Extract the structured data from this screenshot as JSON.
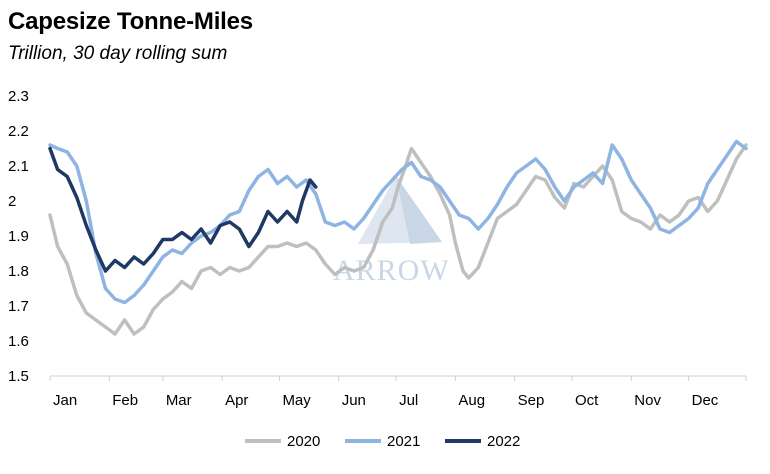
{
  "chart_data": {
    "type": "line",
    "title": "Capesize Tonne-Miles",
    "subtitle": "Trillion, 30 day rolling sum",
    "xlabel": "",
    "ylabel": "",
    "ylim": [
      1.5,
      2.3
    ],
    "y_ticks": [
      "1.5",
      "1.6",
      "1.7",
      "1.8",
      "1.9",
      "2",
      "2.1",
      "2.2",
      "2.3"
    ],
    "x_ticks": [
      "Jan",
      "Feb",
      "Mar",
      "Apr",
      "May",
      "Jun",
      "Jul",
      "Aug",
      "Sep",
      "Oct",
      "Nov",
      "Dec"
    ],
    "x_unit": "day of year",
    "xlim": [
      1,
      365
    ],
    "grid": false,
    "legend_position": "bottom-center",
    "series": [
      {
        "name": "2020",
        "color": "#bfbfbf",
        "x": [
          1,
          5,
          10,
          15,
          20,
          25,
          30,
          35,
          40,
          45,
          50,
          55,
          60,
          65,
          70,
          75,
          80,
          85,
          90,
          95,
          100,
          105,
          110,
          115,
          120,
          125,
          130,
          135,
          140,
          145,
          150,
          155,
          160,
          165,
          170,
          175,
          180,
          183,
          187,
          190,
          195,
          200,
          205,
          210,
          213,
          217,
          220,
          225,
          230,
          235,
          240,
          245,
          250,
          255,
          260,
          265,
          270,
          275,
          280,
          285,
          290,
          295,
          300,
          305,
          310,
          315,
          320,
          325,
          330,
          335,
          340,
          345,
          350,
          355,
          360,
          365
        ],
        "y": [
          1.96,
          1.87,
          1.82,
          1.73,
          1.68,
          1.66,
          1.64,
          1.62,
          1.66,
          1.62,
          1.64,
          1.69,
          1.72,
          1.74,
          1.77,
          1.75,
          1.8,
          1.81,
          1.79,
          1.81,
          1.8,
          1.81,
          1.84,
          1.87,
          1.87,
          1.88,
          1.87,
          1.88,
          1.86,
          1.82,
          1.79,
          1.81,
          1.8,
          1.81,
          1.86,
          1.94,
          1.98,
          2.04,
          2.1,
          2.15,
          2.11,
          2.07,
          2.02,
          1.96,
          1.88,
          1.8,
          1.78,
          1.81,
          1.88,
          1.95,
          1.97,
          1.99,
          2.03,
          2.07,
          2.06,
          2.01,
          1.98,
          2.05,
          2.04,
          2.07,
          2.1,
          2.06,
          1.97,
          1.95,
          1.94,
          1.92,
          1.96,
          1.94,
          1.96,
          2.0,
          2.01,
          1.97,
          2.0,
          2.06,
          2.12,
          2.16
        ]
      },
      {
        "name": "2021",
        "color": "#8db4e2",
        "x": [
          1,
          5,
          10,
          15,
          20,
          25,
          30,
          35,
          40,
          45,
          50,
          55,
          60,
          65,
          70,
          75,
          80,
          85,
          90,
          95,
          100,
          105,
          110,
          115,
          120,
          125,
          130,
          135,
          140,
          145,
          150,
          155,
          160,
          165,
          170,
          175,
          180,
          185,
          190,
          195,
          200,
          205,
          210,
          215,
          220,
          225,
          230,
          235,
          240,
          245,
          250,
          255,
          260,
          265,
          270,
          275,
          280,
          285,
          290,
          295,
          300,
          305,
          310,
          315,
          320,
          325,
          330,
          335,
          340,
          345,
          350,
          355,
          360,
          365
        ],
        "y": [
          2.16,
          2.15,
          2.14,
          2.1,
          2.0,
          1.85,
          1.75,
          1.72,
          1.71,
          1.73,
          1.76,
          1.8,
          1.84,
          1.86,
          1.85,
          1.88,
          1.9,
          1.91,
          1.93,
          1.96,
          1.97,
          2.03,
          2.07,
          2.09,
          2.05,
          2.07,
          2.04,
          2.06,
          2.02,
          1.94,
          1.93,
          1.94,
          1.92,
          1.95,
          1.99,
          2.03,
          2.06,
          2.09,
          2.11,
          2.07,
          2.06,
          2.04,
          2.0,
          1.96,
          1.95,
          1.92,
          1.95,
          1.99,
          2.04,
          2.08,
          2.1,
          2.12,
          2.09,
          2.04,
          2.0,
          2.04,
          2.06,
          2.08,
          2.05,
          2.16,
          2.12,
          2.06,
          2.02,
          1.98,
          1.92,
          1.91,
          1.93,
          1.95,
          1.98,
          2.05,
          2.09,
          2.13,
          2.17,
          2.15
        ]
      },
      {
        "name": "2022",
        "color": "#1f3864",
        "x": [
          1,
          5,
          10,
          15,
          20,
          25,
          30,
          35,
          40,
          45,
          50,
          55,
          60,
          65,
          70,
          75,
          80,
          85,
          90,
          95,
          100,
          105,
          110,
          115,
          120,
          125,
          130,
          133,
          137,
          140
        ],
        "y": [
          2.15,
          2.09,
          2.07,
          2.01,
          1.93,
          1.86,
          1.8,
          1.83,
          1.81,
          1.84,
          1.82,
          1.85,
          1.89,
          1.89,
          1.91,
          1.89,
          1.92,
          1.88,
          1.93,
          1.94,
          1.92,
          1.87,
          1.91,
          1.97,
          1.94,
          1.97,
          1.94,
          2.0,
          2.06,
          2.04
        ]
      }
    ],
    "watermark": "ARROW"
  }
}
